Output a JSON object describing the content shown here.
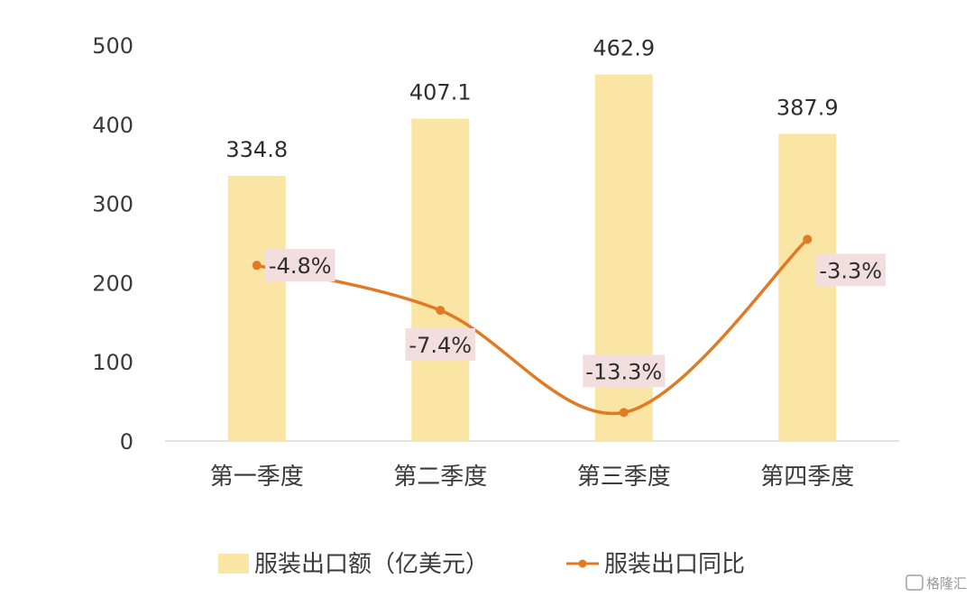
{
  "chart_data": {
    "type": "bar",
    "categories": [
      "第一季度",
      "第二季度",
      "第三季度",
      "第四季度"
    ],
    "ylim": [
      0,
      500
    ],
    "yticks": [
      0,
      100,
      200,
      300,
      400,
      500
    ],
    "series": [
      {
        "name": "服装出口额（亿美元）",
        "type": "bar",
        "values": [
          334.8,
          407.1,
          462.9,
          387.9
        ],
        "labels": [
          "334.8",
          "407.1",
          "462.9",
          "387.9"
        ],
        "color": "#FBE5A4"
      },
      {
        "name": "服装出口同比",
        "type": "line",
        "values": [
          -4.8,
          -7.4,
          -13.3,
          -3.3
        ],
        "labels": [
          "-4.8%",
          "-7.4%",
          "-13.3%",
          "-3.3%"
        ],
        "secondary_axis_range": [
          -15,
          0
        ],
        "color": "#E07B24"
      }
    ],
    "legend_position": "bottom",
    "grid": false
  },
  "watermark": "格隆汇"
}
